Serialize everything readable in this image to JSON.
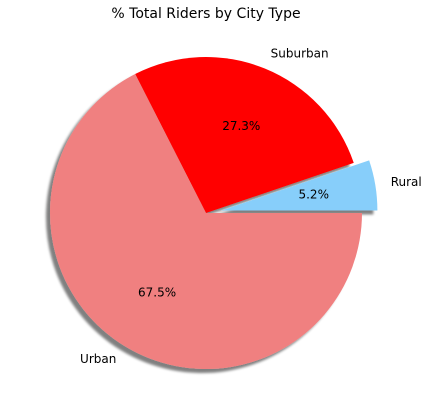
{
  "chart_data": {
    "type": "pie",
    "title": "% Total Riders by City Type",
    "slices": [
      {
        "label": "Rural",
        "value": 5.2,
        "pct_label": "5.2%",
        "color": "#87CEFA",
        "explode": true
      },
      {
        "label": "Suburban",
        "value": 27.3,
        "pct_label": "27.3%",
        "color": "#FF0000",
        "explode": false
      },
      {
        "label": "Urban",
        "value": 67.5,
        "pct_label": "67.5%",
        "color": "#F08080",
        "explode": false
      }
    ],
    "start_angle": 0,
    "direction": "counterclockwise",
    "shadow": true,
    "legend": "none"
  }
}
